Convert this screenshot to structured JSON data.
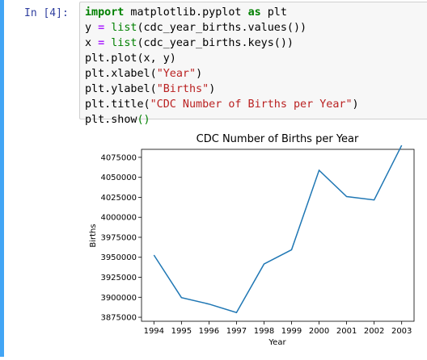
{
  "cell": {
    "prompt": "In [4]:",
    "code": {
      "l1": {
        "kw1": "import",
        "mod": " matplotlib.pyplot ",
        "kw2": "as",
        "rest": " plt"
      },
      "l2": {
        "a": "y ",
        "eq": "=",
        "sp": " ",
        "fn": "list",
        "rest": "(cdc_year_births.values())"
      },
      "l3": {
        "a": "x ",
        "eq": "=",
        "sp": " ",
        "fn": "list",
        "rest": "(cdc_year_births.keys())"
      },
      "l4": {
        "text": "plt.plot(x, y)"
      },
      "l5": {
        "pre": "plt.xlabel(",
        "str": "\"Year\"",
        "post": ")"
      },
      "l6": {
        "pre": "plt.ylabel(",
        "str": "\"Births\"",
        "post": ")"
      },
      "l7": {
        "pre": "plt.title(",
        "str": "\"CDC Number of Births per Year\"",
        "post": ")"
      },
      "l8": {
        "pre": "plt.show",
        "paren": "()"
      }
    }
  },
  "colors": {
    "accent": "#42a5f5",
    "line": "#1f77b4"
  },
  "chart_data": {
    "type": "line",
    "title": "CDC Number of Births per Year",
    "xlabel": "Year",
    "ylabel": "Births",
    "x": [
      1994,
      1995,
      1996,
      1997,
      1998,
      1999,
      2000,
      2001,
      2002,
      2003
    ],
    "y": [
      3952767,
      3899589,
      3891494,
      3880894,
      3941553,
      3959417,
      4058814,
      4025933,
      4021726,
      4089950
    ],
    "xlim": [
      1993.55,
      2003.45
    ],
    "ylim": [
      3870000,
      4085000
    ],
    "xticks": [
      "1994",
      "1995",
      "1996",
      "1997",
      "1998",
      "1999",
      "2000",
      "2001",
      "2002",
      "2003"
    ],
    "yticks": [
      "3875000",
      "3900000",
      "3925000",
      "3950000",
      "3975000",
      "4000000",
      "4025000",
      "4050000",
      "4075000"
    ],
    "grid": false
  }
}
